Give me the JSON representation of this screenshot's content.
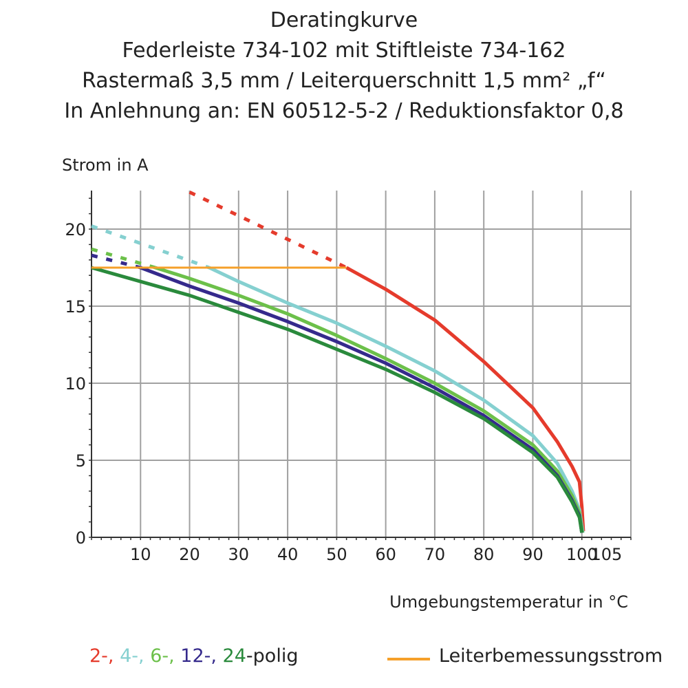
{
  "title_lines": [
    "Deratingkurve",
    "Federleiste 734-102 mit Stiftleiste 734-162",
    "Rastermaß 3,5 mm / Leiterquerschnitt 1,5 mm² „f“",
    "In Anlehnung an: EN 60512-5-2 / Reduktionsfaktor 0,8"
  ],
  "chart_data": {
    "type": "line",
    "ylabel": "Strom in A",
    "xlabel": "Umgebungstemperatur in  °C",
    "xlim": [
      0,
      110
    ],
    "ylim": [
      0,
      22.5
    ],
    "grid": true,
    "x_ticks": [
      10,
      20,
      30,
      40,
      50,
      60,
      70,
      80,
      90,
      100,
      105
    ],
    "y_ticks": [
      0,
      5,
      10,
      15,
      20
    ],
    "series": [
      {
        "color": "#e53b2c",
        "dashed": [
          [
            20,
            22.4
          ],
          [
            52,
            17.5
          ]
        ],
        "solid": [
          [
            52,
            17.5
          ],
          [
            60,
            16.1
          ],
          [
            70,
            14.1
          ],
          [
            80,
            11.4
          ],
          [
            90,
            8.4
          ],
          [
            95,
            6.2
          ],
          [
            98,
            4.6
          ],
          [
            99.5,
            3.6
          ],
          [
            100,
            2
          ],
          [
            100.3,
            0.4
          ]
        ]
      },
      {
        "color": "#85d0d0",
        "dashed": [
          [
            0,
            20.2
          ],
          [
            24,
            17.5
          ]
        ],
        "solid": [
          [
            24,
            17.5
          ],
          [
            30,
            16.6
          ],
          [
            40,
            15.2
          ],
          [
            50,
            13.9
          ],
          [
            60,
            12.4
          ],
          [
            70,
            10.8
          ],
          [
            80,
            8.9
          ],
          [
            90,
            6.6
          ],
          [
            95,
            4.8
          ],
          [
            98,
            3
          ],
          [
            99.5,
            1.8
          ],
          [
            100.2,
            0.3
          ]
        ]
      },
      {
        "color": "#6cc04a",
        "dashed": [
          [
            0,
            18.7
          ],
          [
            13,
            17.5
          ]
        ],
        "solid": [
          [
            13,
            17.5
          ],
          [
            20,
            16.8
          ],
          [
            30,
            15.7
          ],
          [
            40,
            14.5
          ],
          [
            50,
            13.1
          ],
          [
            60,
            11.6
          ],
          [
            70,
            10
          ],
          [
            80,
            8.2
          ],
          [
            90,
            6
          ],
          [
            95,
            4.3
          ],
          [
            98,
            2.7
          ],
          [
            99.5,
            1.6
          ],
          [
            100.1,
            0.3
          ]
        ]
      },
      {
        "color": "#352a8c",
        "dashed": [
          [
            0,
            18.3
          ],
          [
            10,
            17.5
          ]
        ],
        "solid": [
          [
            10,
            17.5
          ],
          [
            20,
            16.3
          ],
          [
            30,
            15.2
          ],
          [
            40,
            14
          ],
          [
            50,
            12.7
          ],
          [
            60,
            11.3
          ],
          [
            70,
            9.7
          ],
          [
            80,
            7.9
          ],
          [
            90,
            5.7
          ],
          [
            95,
            4
          ],
          [
            98,
            2.4
          ],
          [
            99.5,
            1.4
          ],
          [
            100,
            0.3
          ]
        ]
      },
      {
        "color": "#2a8a3c",
        "dashed": [],
        "solid": [
          [
            0,
            17.5
          ],
          [
            10,
            16.6
          ],
          [
            20,
            15.7
          ],
          [
            30,
            14.6
          ],
          [
            40,
            13.5
          ],
          [
            50,
            12.2
          ],
          [
            60,
            10.9
          ],
          [
            70,
            9.4
          ],
          [
            80,
            7.7
          ],
          [
            90,
            5.5
          ],
          [
            95,
            3.9
          ],
          [
            98,
            2.3
          ],
          [
            99.5,
            1.3
          ],
          [
            100,
            0.3
          ]
        ]
      },
      {
        "color": "#f5a02a",
        "dashed": [],
        "solid": [
          [
            0,
            17.5
          ],
          [
            52,
            17.5
          ]
        ],
        "thin": true
      }
    ]
  },
  "legend": {
    "poles": [
      {
        "text": "2-,",
        "color": "#e53b2c"
      },
      {
        "text": " 4-,",
        "color": "#85d0d0"
      },
      {
        "text": " 6-,",
        "color": "#6cc04a"
      },
      {
        "text": " 12-,",
        "color": "#352a8c"
      },
      {
        "text": " 24",
        "color": "#2a8a3c"
      },
      {
        "text": "-polig",
        "color": "#222222"
      }
    ],
    "rated_current_label": "Leiterbemessungsstrom",
    "rated_current_color": "#f5a02a"
  }
}
